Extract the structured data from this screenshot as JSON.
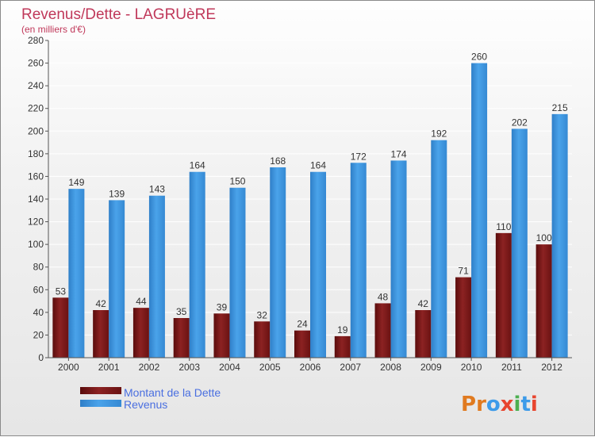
{
  "chart_data": {
    "type": "bar",
    "title": "Revenus/Dette - LAGRUèRE",
    "subtitle": "(en milliers d'€)",
    "xlabel": "",
    "ylabel": "",
    "categories": [
      "2000",
      "2001",
      "2002",
      "2003",
      "2004",
      "2005",
      "2006",
      "2007",
      "2008",
      "2009",
      "2010",
      "2011",
      "2012"
    ],
    "series": [
      {
        "name": "Montant de la Dette",
        "color": "#7a1515",
        "values": [
          53,
          42,
          44,
          35,
          39,
          32,
          24,
          19,
          48,
          42,
          71,
          110,
          100
        ]
      },
      {
        "name": "Revenus",
        "color": "#3d95dd",
        "values": [
          149,
          139,
          143,
          164,
          150,
          168,
          164,
          172,
          174,
          192,
          260,
          202,
          215
        ]
      }
    ],
    "ylim": [
      0,
      280
    ],
    "yticks": [
      0,
      20,
      40,
      60,
      80,
      100,
      120,
      140,
      160,
      180,
      200,
      220,
      240,
      260,
      280
    ],
    "grid": true,
    "legend_position": "bottom-left"
  },
  "logo": {
    "letters": [
      "P",
      "r",
      "o",
      "x",
      "i",
      "t",
      "i"
    ],
    "colors": [
      "#e07a1f",
      "#e07a1f",
      "#3d9be9",
      "#e8452e",
      "#4caf50",
      "#3d9be9",
      "#e8452e"
    ]
  },
  "colors": {
    "title": "#c0385a",
    "legend_text": "#4a6fe0",
    "grid": "#ffffff",
    "axis": "#555555"
  }
}
